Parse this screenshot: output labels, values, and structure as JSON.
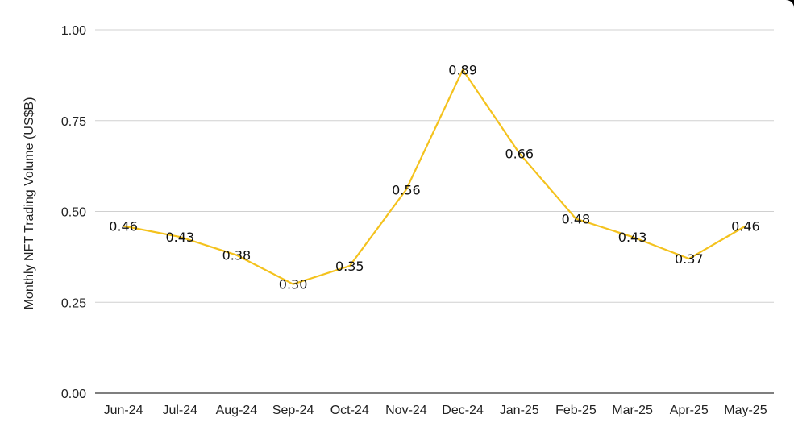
{
  "chart_data": {
    "type": "line",
    "title": "",
    "xlabel": "",
    "ylabel": "Monthly NFT Trading Volume (US$B)",
    "categories": [
      "Jun-24",
      "Jul-24",
      "Aug-24",
      "Sep-24",
      "Oct-24",
      "Nov-24",
      "Dec-24",
      "Jan-25",
      "Feb-25",
      "Mar-25",
      "Apr-25",
      "May-25"
    ],
    "series": [
      {
        "values": [
          0.46,
          0.43,
          0.38,
          0.3,
          0.35,
          0.56,
          0.89,
          0.66,
          0.48,
          0.43,
          0.37,
          0.46
        ],
        "data_labels": [
          "0.46",
          "0.43",
          "0.38",
          "0.30",
          "0.35",
          "0.56",
          "0.89",
          "0.66",
          "0.48",
          "0.43",
          "0.37",
          "0.46"
        ]
      }
    ],
    "ylim": [
      0,
      1
    ],
    "yticks": [
      0,
      0.25,
      0.5,
      0.75,
      1.0
    ],
    "ytick_labels": [
      "0.00",
      "0.25",
      "0.50",
      "0.75",
      "1.00"
    ],
    "grid": true,
    "legend": "none",
    "colors": {
      "line": "#F4C21D",
      "grid": "#D0D0D0",
      "axis": "#333333"
    }
  }
}
